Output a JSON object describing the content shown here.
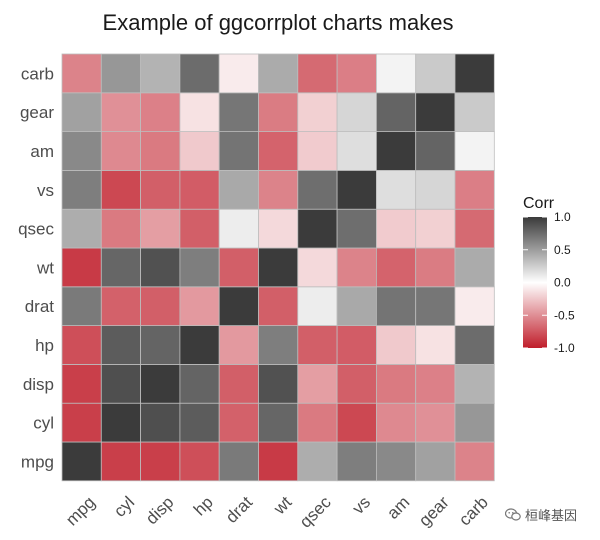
{
  "chart_data": {
    "type": "heatmap",
    "title": "Example of ggcorrplot charts makes",
    "variables": [
      "mpg",
      "cyl",
      "disp",
      "hp",
      "drat",
      "wt",
      "qsec",
      "vs",
      "am",
      "gear",
      "carb"
    ],
    "matrix": [
      [
        1.0,
        -0.85,
        -0.85,
        -0.78,
        0.68,
        -0.87,
        0.42,
        0.66,
        0.6,
        0.48,
        -0.55
      ],
      [
        -0.85,
        1.0,
        0.9,
        0.83,
        -0.7,
        0.78,
        -0.59,
        -0.81,
        -0.52,
        -0.49,
        0.53
      ],
      [
        -0.85,
        0.9,
        1.0,
        0.79,
        -0.71,
        0.89,
        -0.43,
        -0.71,
        -0.59,
        -0.56,
        0.39
      ],
      [
        -0.78,
        0.83,
        0.79,
        1.0,
        -0.45,
        0.66,
        -0.71,
        -0.72,
        -0.24,
        -0.13,
        0.75
      ],
      [
        0.68,
        -0.7,
        -0.71,
        -0.45,
        1.0,
        -0.71,
        0.09,
        0.44,
        0.71,
        0.7,
        -0.09
      ],
      [
        -0.87,
        0.78,
        0.89,
        0.66,
        -0.71,
        1.0,
        -0.17,
        -0.55,
        -0.69,
        -0.58,
        0.43
      ],
      [
        0.42,
        -0.59,
        -0.43,
        -0.71,
        0.09,
        -0.17,
        1.0,
        0.74,
        -0.23,
        -0.21,
        -0.66
      ],
      [
        0.66,
        -0.81,
        -0.71,
        -0.72,
        0.44,
        -0.55,
        0.74,
        1.0,
        0.17,
        0.21,
        -0.57
      ],
      [
        0.6,
        -0.52,
        -0.59,
        -0.24,
        0.71,
        -0.69,
        -0.23,
        0.17,
        1.0,
        0.79,
        0.06
      ],
      [
        0.48,
        -0.49,
        -0.56,
        -0.13,
        0.7,
        -0.58,
        -0.21,
        0.21,
        0.79,
        1.0,
        0.27
      ],
      [
        -0.55,
        0.53,
        0.39,
        0.75,
        -0.09,
        0.43,
        -0.66,
        -0.57,
        0.06,
        0.27,
        1.0
      ]
    ],
    "legend": {
      "title": "Corr",
      "ticks": [
        "1.0",
        "0.5",
        "0.0",
        "-0.5",
        "-1.0"
      ],
      "tick_values": [
        1.0,
        0.5,
        0.0,
        -0.5,
        -1.0
      ],
      "range": [
        -1,
        1
      ],
      "position": "right"
    },
    "colors": {
      "low": "#c01d2a",
      "mid": "#ffffff",
      "high": "#3b3b3b",
      "grid": "#bdbdbd",
      "panel": "#ebebeb"
    }
  },
  "watermark": {
    "text": "桓峰基因",
    "icon": "wechat-icon"
  }
}
